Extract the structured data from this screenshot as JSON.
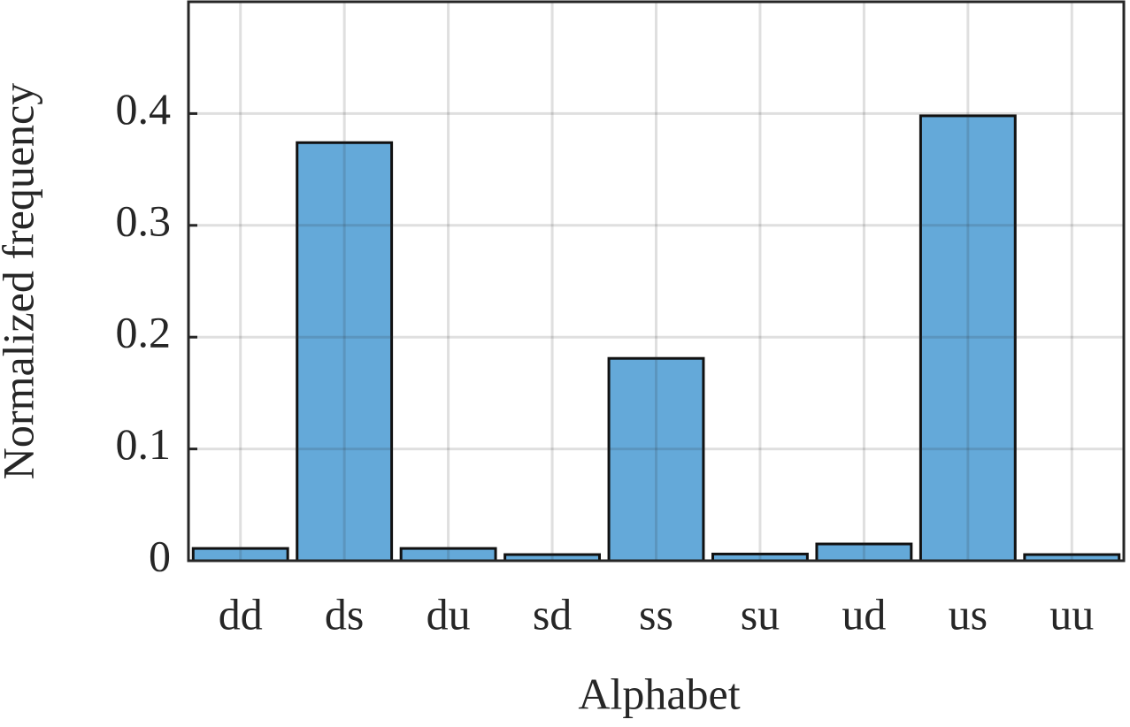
{
  "chart_data": {
    "type": "bar",
    "x_label": "Alphabet",
    "y_label": "Normalized frequency",
    "categories": [
      "dd",
      "ds",
      "du",
      "sd",
      "ss",
      "su",
      "ud",
      "us",
      "uu"
    ],
    "values": [
      0.011,
      0.374,
      0.011,
      0.0055,
      0.181,
      0.006,
      0.015,
      0.398,
      0.0055
    ],
    "color": "#64a9d9",
    "ylim": [
      0,
      0.5
    ],
    "yticks": [
      0,
      0.1,
      0.2,
      0.3,
      0.4
    ],
    "grid": true
  }
}
